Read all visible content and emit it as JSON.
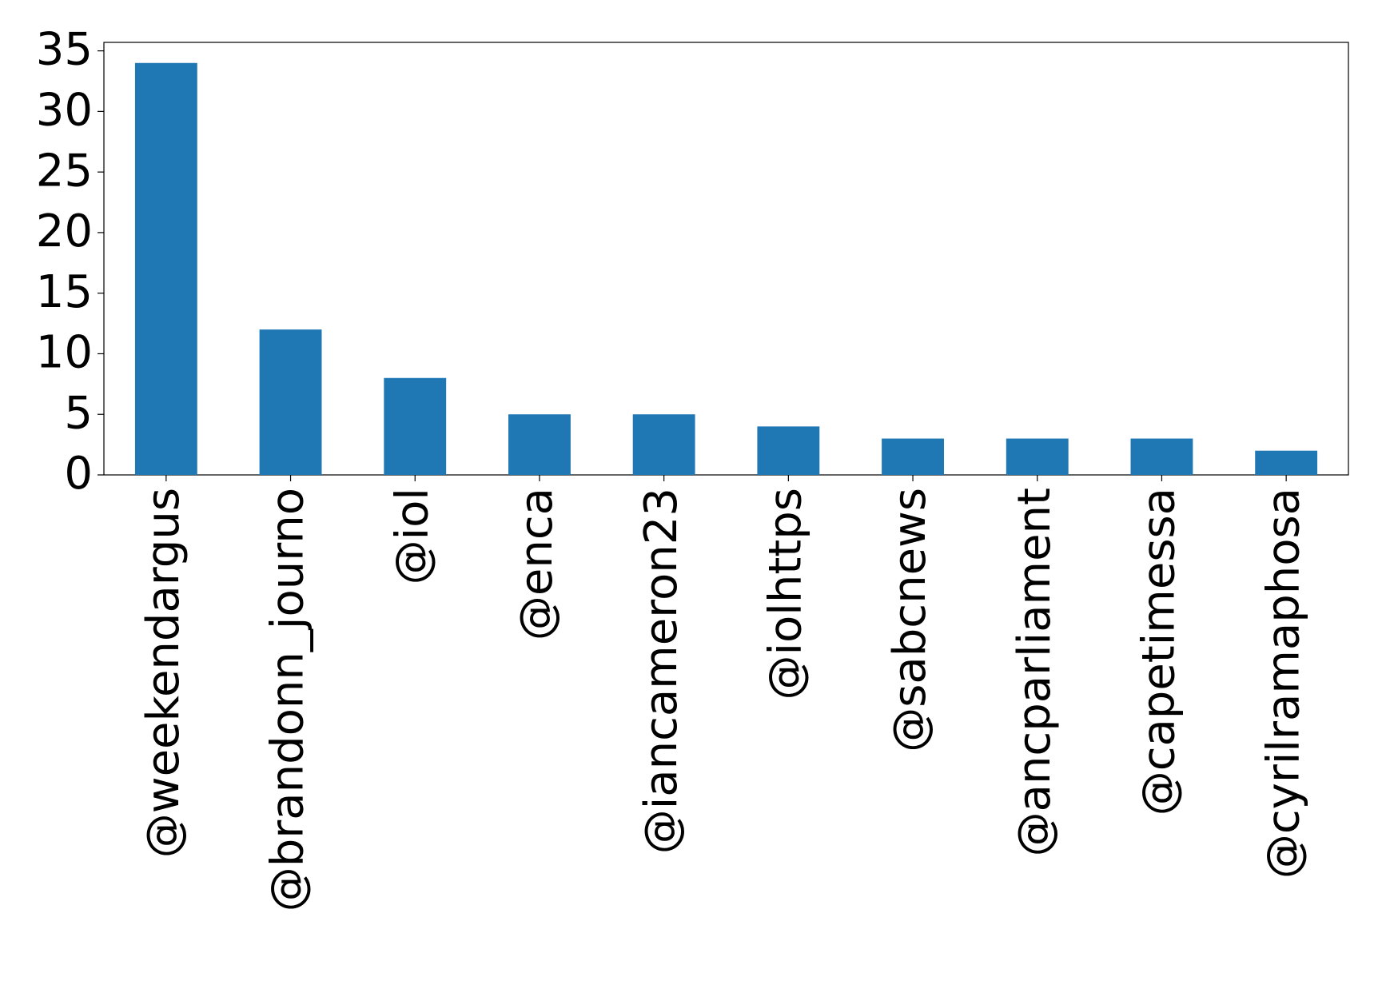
{
  "chart_data": {
    "type": "bar",
    "categories": [
      "@weekendargus",
      "@brandonn_journo",
      "@iol",
      "@enca",
      "@iancameron23",
      "@iolhttps",
      "@sabcnews",
      "@ancparliament",
      "@capetimessa",
      "@cyrilramaphosa"
    ],
    "values": [
      34,
      12,
      8,
      5,
      5,
      4,
      3,
      3,
      3,
      2
    ],
    "color": "#1f77b4",
    "ylim": [
      0,
      35.7
    ],
    "yticks": [
      0,
      5,
      10,
      15,
      20,
      25,
      30,
      35
    ],
    "grid": false
  }
}
